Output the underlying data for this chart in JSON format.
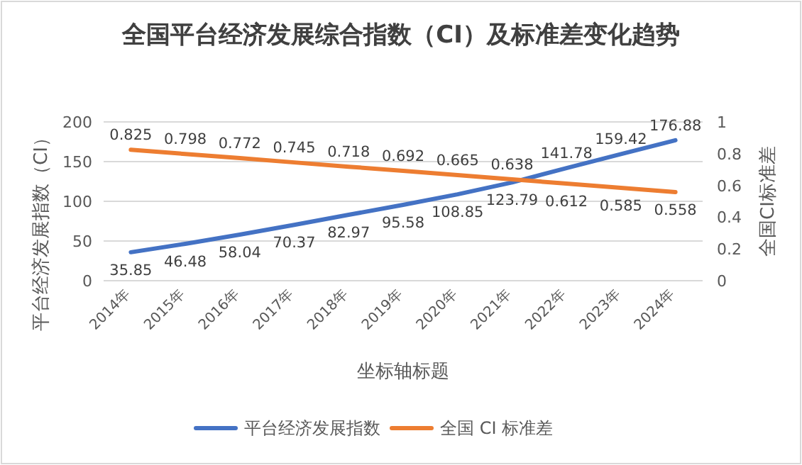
{
  "chart_data": {
    "type": "line",
    "title": "全国平台经济发展综合指数（CI）及标准差变化趋势",
    "xlabel": "坐标轴标题",
    "ylabel": "平台经济发展指数（CI）",
    "y2label": "全国CI标准差",
    "categories": [
      "2014年",
      "2015年",
      "2016年",
      "2017年",
      "2018年",
      "2019年",
      "2020年",
      "2021年",
      "2022年",
      "2023年",
      "2024年"
    ],
    "series": [
      {
        "name": "平台经济发展指数",
        "color": "#4472c4",
        "values": [
          35.85,
          46.48,
          58.04,
          70.37,
          82.97,
          95.58,
          108.85,
          123.79,
          141.78,
          159.42,
          176.88
        ]
      },
      {
        "name": "全国 CI 标准差",
        "color": "#ed7d31",
        "axis": "y2",
        "values": [
          0.825,
          0.798,
          0.772,
          0.745,
          0.718,
          0.692,
          0.665,
          0.638,
          0.612,
          0.585,
          0.558
        ]
      }
    ],
    "ylim": [
      0,
      200
    ],
    "yticks": [
      0,
      50,
      100,
      150,
      200
    ],
    "y2lim": [
      0,
      1
    ],
    "y2ticks": [
      0,
      0.2,
      0.4,
      0.6,
      0.8,
      1
    ],
    "grid": "y",
    "legend": "bottom",
    "data_labels": true,
    "marker": "none",
    "line_style": "solid"
  }
}
